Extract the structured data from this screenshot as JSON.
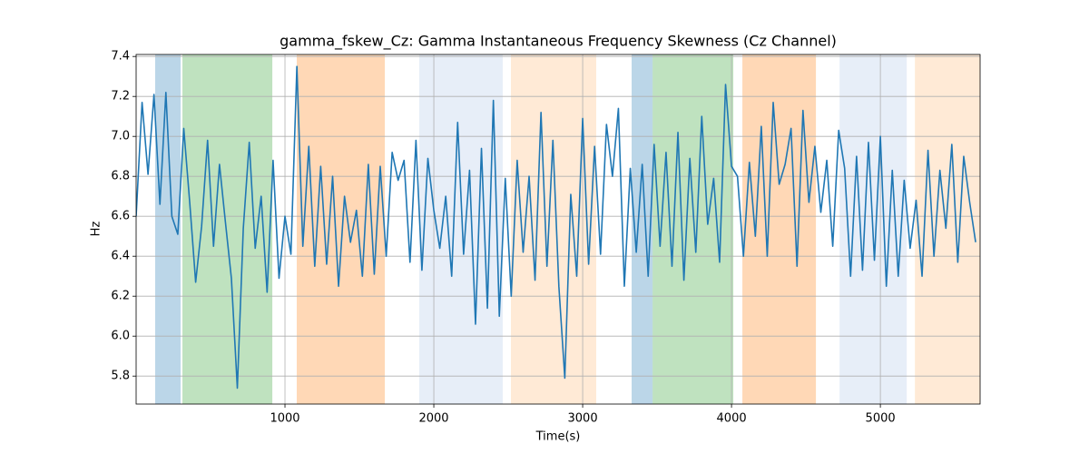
{
  "chart_data": {
    "type": "line",
    "title": "gamma_fskew_Cz: Gamma Instantaneous Frequency Skewness (Cz Channel)",
    "xlabel": "Time(s)",
    "ylabel": "Hz",
    "color": "#1f77b4",
    "grid": true,
    "xlim": [
      0,
      5670
    ],
    "ylim": [
      5.66,
      7.41
    ],
    "xticks": [
      1000,
      2000,
      3000,
      4000,
      5000
    ],
    "yticks": [
      5.8,
      {
        "value": 6,
        "label": "6.0"
      },
      6.2,
      6.4,
      6.6,
      6.8,
      {
        "value": 7,
        "label": "7.0"
      },
      7.2,
      7.4
    ],
    "spans": [
      {
        "start": 128,
        "end": 299,
        "color": "#1f77b4",
        "opacity": 0.3
      },
      {
        "start": 311,
        "end": 915,
        "color": "#2ca02c",
        "opacity": 0.3
      },
      {
        "start": 1079,
        "end": 1671,
        "color": "#ff7f0e",
        "opacity": 0.3
      },
      {
        "start": 1902,
        "end": 2463,
        "color": "#aec7e8",
        "opacity": 0.3
      },
      {
        "start": 2518,
        "end": 3091,
        "color": "#ffbb78",
        "opacity": 0.3
      },
      {
        "start": 3329,
        "end": 3470,
        "color": "#1f77b4",
        "opacity": 0.3
      },
      {
        "start": 3470,
        "end": 4012,
        "color": "#2ca02c",
        "opacity": 0.3
      },
      {
        "start": 4073,
        "end": 4567,
        "color": "#ff7f0e",
        "opacity": 0.3
      },
      {
        "start": 4726,
        "end": 5177,
        "color": "#aec7e8",
        "opacity": 0.3
      },
      {
        "start": 5232,
        "end": 5677,
        "color": "#ffbb78",
        "opacity": 0.3
      }
    ],
    "x": [
      0,
      40,
      80,
      120,
      160,
      200,
      240,
      280,
      320,
      360,
      400,
      440,
      480,
      520,
      560,
      600,
      640,
      680,
      720,
      760,
      800,
      840,
      880,
      920,
      960,
      1000,
      1040,
      1080,
      1120,
      1160,
      1200,
      1240,
      1280,
      1320,
      1360,
      1400,
      1440,
      1480,
      1520,
      1560,
      1600,
      1640,
      1680,
      1720,
      1760,
      1800,
      1840,
      1880,
      1920,
      1960,
      2000,
      2040,
      2080,
      2120,
      2160,
      2200,
      2240,
      2280,
      2320,
      2360,
      2400,
      2440,
      2480,
      2520,
      2560,
      2600,
      2640,
      2680,
      2720,
      2760,
      2800,
      2840,
      2880,
      2920,
      2960,
      3000,
      3040,
      3080,
      3120,
      3160,
      3200,
      3240,
      3280,
      3320,
      3360,
      3400,
      3440,
      3480,
      3520,
      3560,
      3600,
      3640,
      3680,
      3720,
      3760,
      3800,
      3840,
      3880,
      3920,
      3960,
      4000,
      4040,
      4080,
      4120,
      4160,
      4200,
      4240,
      4280,
      4320,
      4360,
      4400,
      4440,
      4480,
      4520,
      4560,
      4600,
      4640,
      4680,
      4720,
      4760,
      4800,
      4840,
      4880,
      4920,
      4960,
      5000,
      5040,
      5080,
      5120,
      5160,
      5200,
      5240,
      5280,
      5320,
      5360,
      5400,
      5440,
      5480,
      5520,
      5560,
      5600,
      5640
    ],
    "values": [
      6.6,
      7.17,
      6.81,
      7.21,
      6.66,
      7.22,
      6.6,
      6.51,
      7.04,
      6.67,
      6.27,
      6.55,
      6.98,
      6.45,
      6.86,
      6.57,
      6.29,
      5.74,
      6.54,
      6.97,
      6.44,
      6.7,
      6.22,
      6.88,
      6.29,
      6.6,
      6.41,
      7.35,
      6.45,
      6.95,
      6.35,
      6.85,
      6.36,
      6.8,
      6.25,
      6.7,
      6.47,
      6.63,
      6.3,
      6.86,
      6.31,
      6.85,
      6.4,
      6.92,
      6.78,
      6.88,
      6.37,
      6.98,
      6.33,
      6.89,
      6.63,
      6.44,
      6.7,
      6.3,
      7.07,
      6.41,
      6.83,
      6.06,
      6.94,
      6.14,
      7.18,
      6.1,
      6.79,
      6.2,
      6.88,
      6.42,
      6.8,
      6.28,
      7.12,
      6.35,
      6.98,
      6.25,
      5.79,
      6.71,
      6.3,
      7.09,
      6.36,
      6.95,
      6.41,
      7.06,
      6.8,
      7.14,
      6.25,
      6.84,
      6.42,
      6.86,
      6.3,
      6.96,
      6.45,
      6.92,
      6.35,
      7.02,
      6.28,
      6.89,
      6.42,
      7.1,
      6.56,
      6.79,
      6.37,
      7.26,
      6.85,
      6.8,
      6.4,
      6.87,
      6.5,
      7.05,
      6.4,
      7.17,
      6.76,
      6.86,
      7.04,
      6.35,
      7.13,
      6.67,
      6.95,
      6.62,
      6.88,
      6.45,
      7.03,
      6.84,
      6.3,
      6.9,
      6.33,
      6.97,
      6.38,
      7.0,
      6.25,
      6.83,
      6.3,
      6.78,
      6.44,
      6.68,
      6.3,
      6.93,
      6.4,
      6.83,
      6.54,
      6.96,
      6.37,
      6.9,
      6.67,
      6.47
    ]
  }
}
